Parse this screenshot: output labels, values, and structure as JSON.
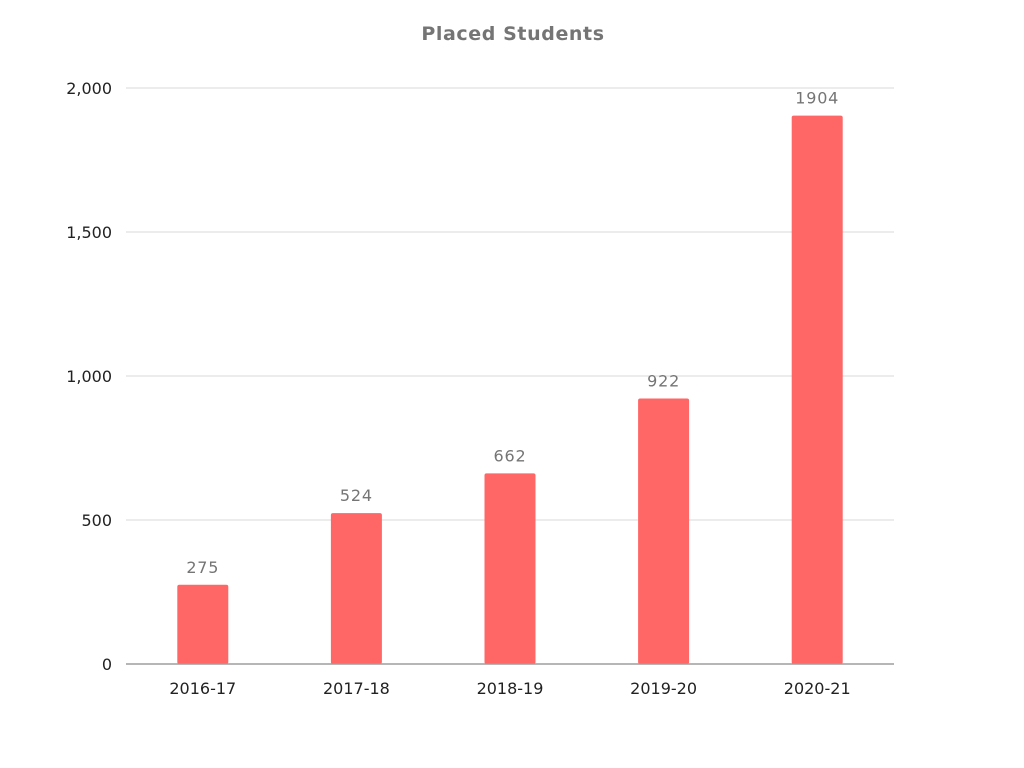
{
  "chart_data": {
    "type": "bar",
    "title": "Placed Students",
    "xlabel": "",
    "ylabel": "",
    "categories": [
      "2016-17",
      "2017-18",
      "2018-19",
      "2019-20",
      "2020-21"
    ],
    "values": [
      275,
      524,
      662,
      922,
      1904
    ],
    "data_labels": [
      "275",
      "524",
      "662",
      "922",
      "1904"
    ],
    "yticks": [
      0,
      500,
      1000,
      1500,
      2000
    ],
    "ytick_labels": [
      "0",
      "500",
      "1,000",
      "1,500",
      "2,000"
    ],
    "ylim": [
      0,
      2000
    ],
    "grid": true,
    "legend": "none",
    "bar_color": "#ff6666"
  }
}
